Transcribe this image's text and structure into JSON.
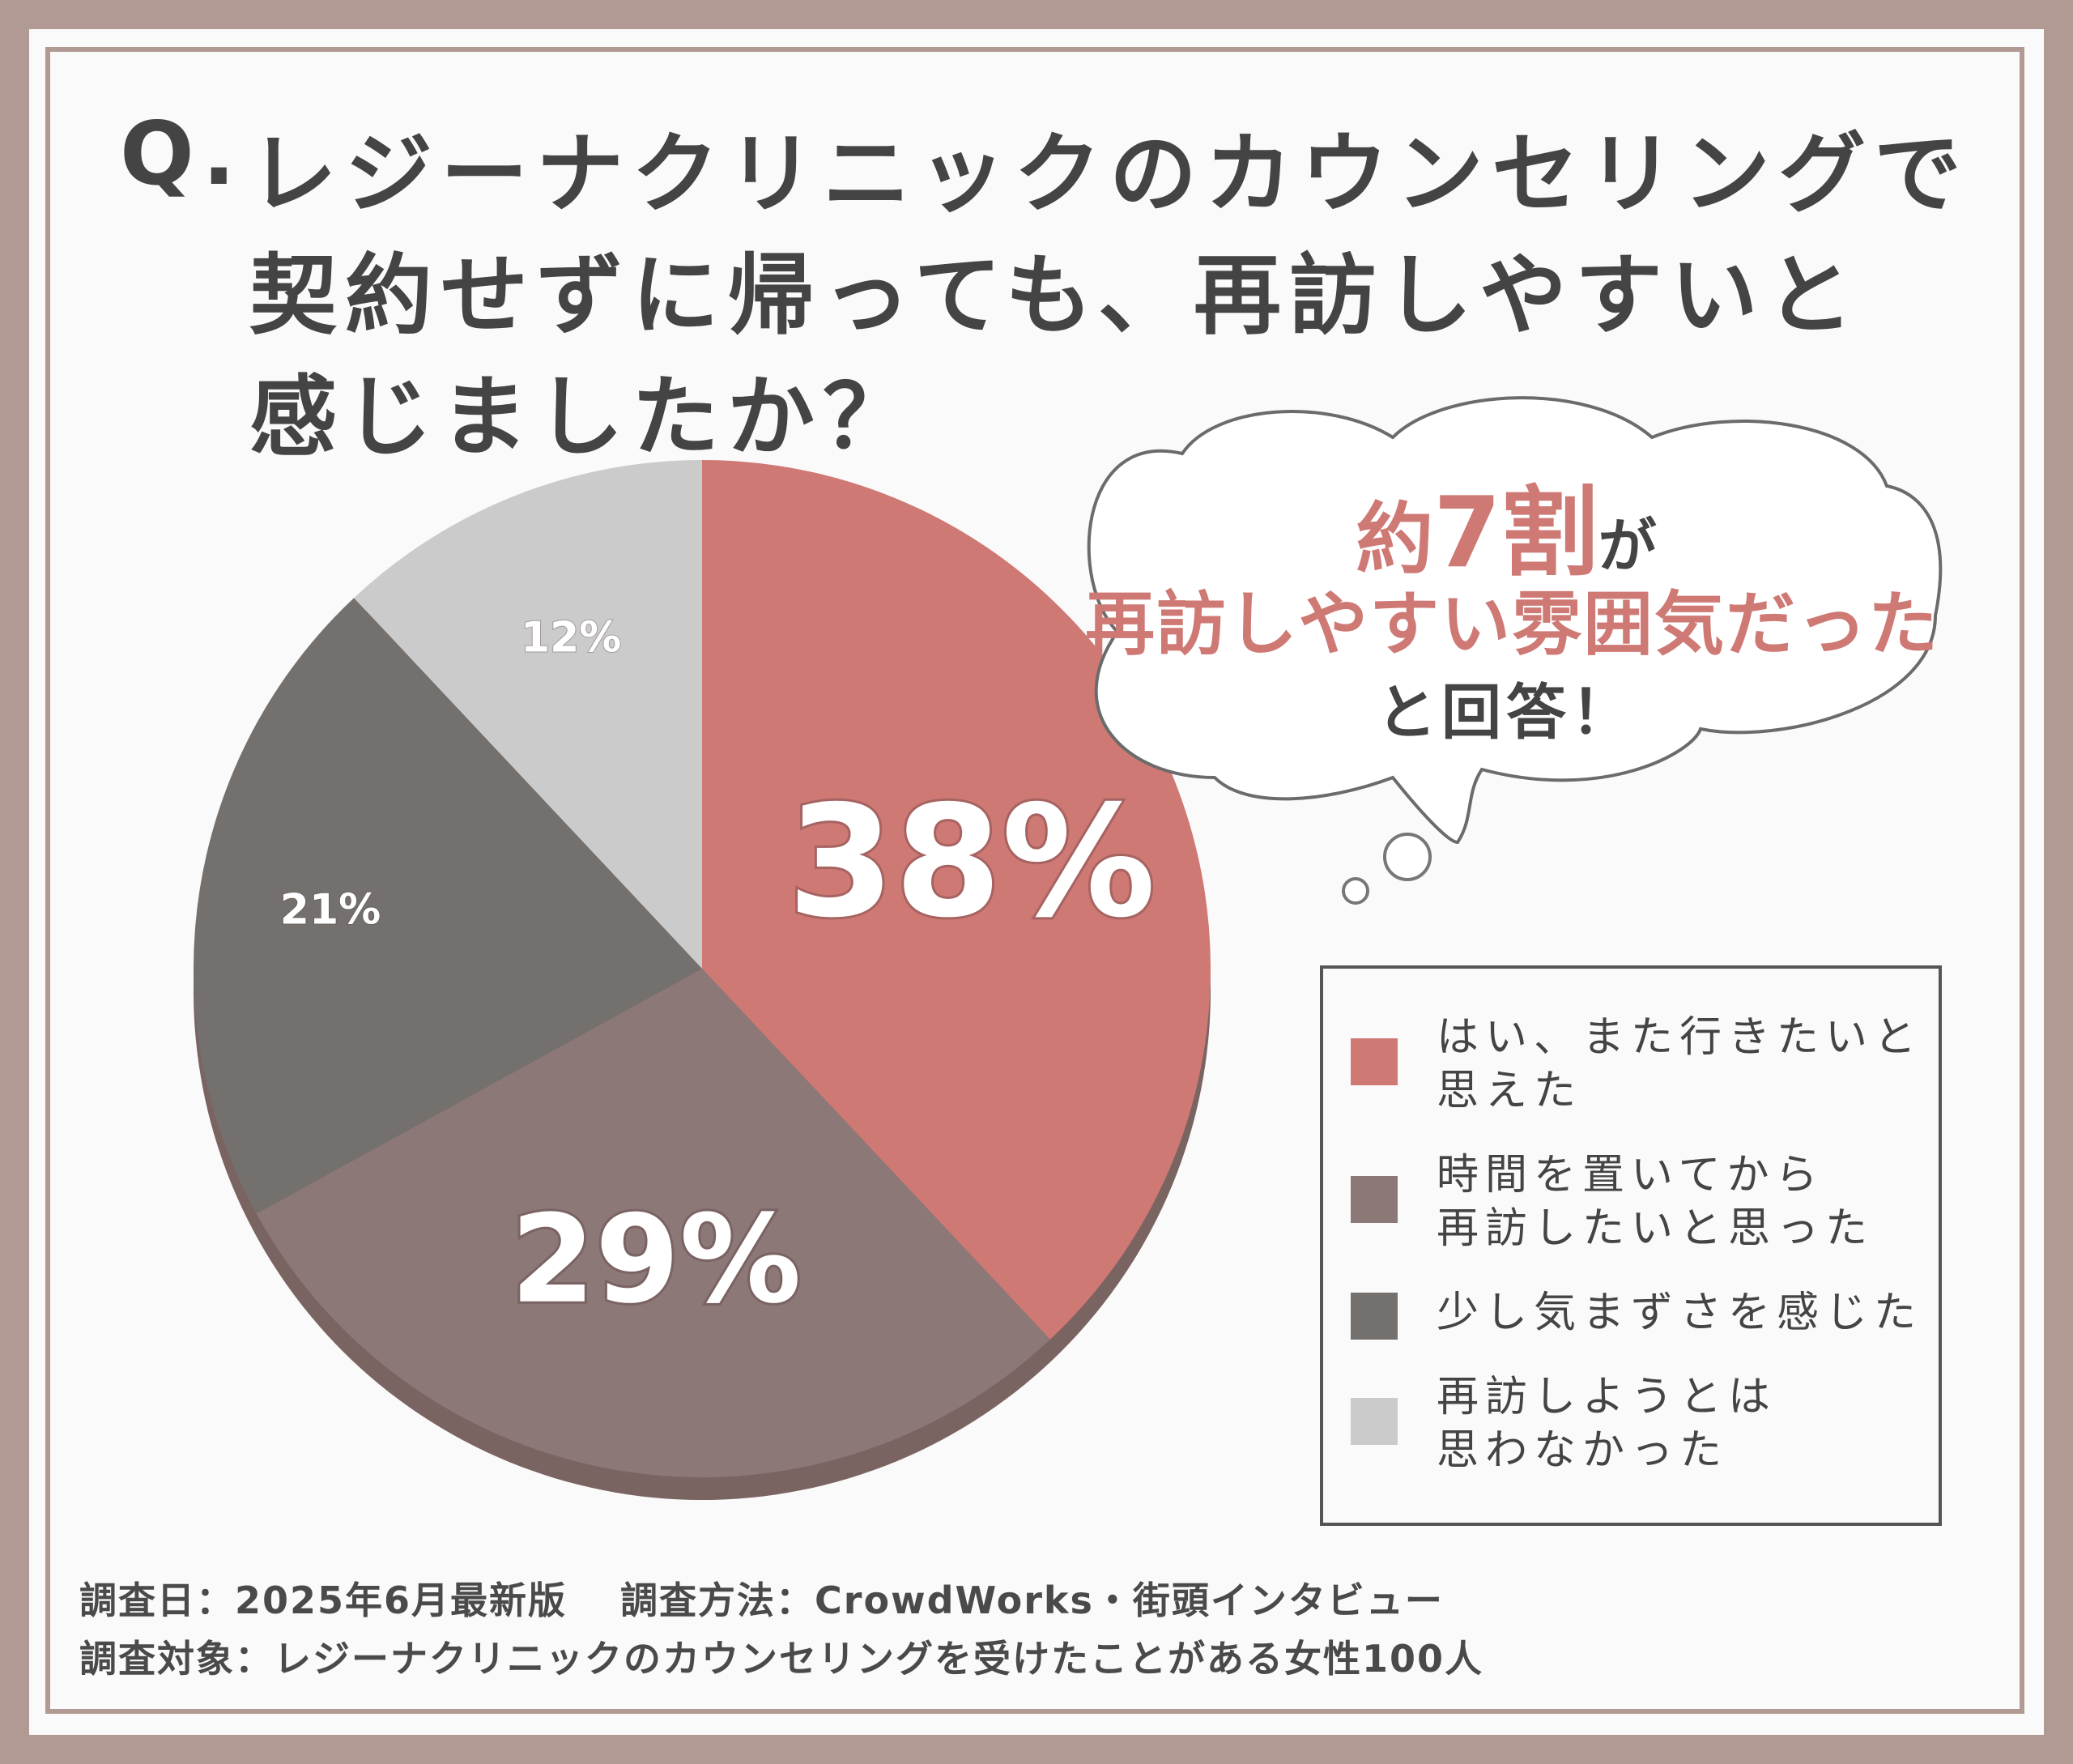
{
  "title": {
    "prefix": "Q.",
    "lines": [
      "レジーナクリニックのカウンセリングで",
      "契約せずに帰っても、再訪しやすいと",
      "感じましたか？"
    ]
  },
  "callout": {
    "line1_a": "約",
    "line1_b": "7割",
    "line1_c": "が",
    "line2": "再訪しやすい雰囲気だった",
    "line3": "と回答！"
  },
  "chart_data": {
    "type": "pie",
    "slices": [
      {
        "label": "はい、また行きたいと\n思えた",
        "value": 38,
        "display": "38%",
        "color": "#cf7975"
      },
      {
        "label": "時間を置いてから\n再訪したいと思った",
        "value": 29,
        "display": "29%",
        "color": "#8c7877"
      },
      {
        "label": "少し気まずさを感じた",
        "value": 21,
        "display": "21%",
        "color": "#74706e"
      },
      {
        "label": "再訪しようとは\n思わなかった",
        "value": 12,
        "display": "12%",
        "color": "#cbcbcb"
      }
    ]
  },
  "footer": {
    "line1": "調査日：2025年6月最新版　 調査方法：CrowdWorks・街頭インタビュー",
    "line2": "調査対象：レジーナクリニックのカウンセリングを受けたことがある女性100人"
  },
  "colors": {
    "frame": "#b19a93",
    "accent": "#cf7975",
    "text": "#444444"
  }
}
